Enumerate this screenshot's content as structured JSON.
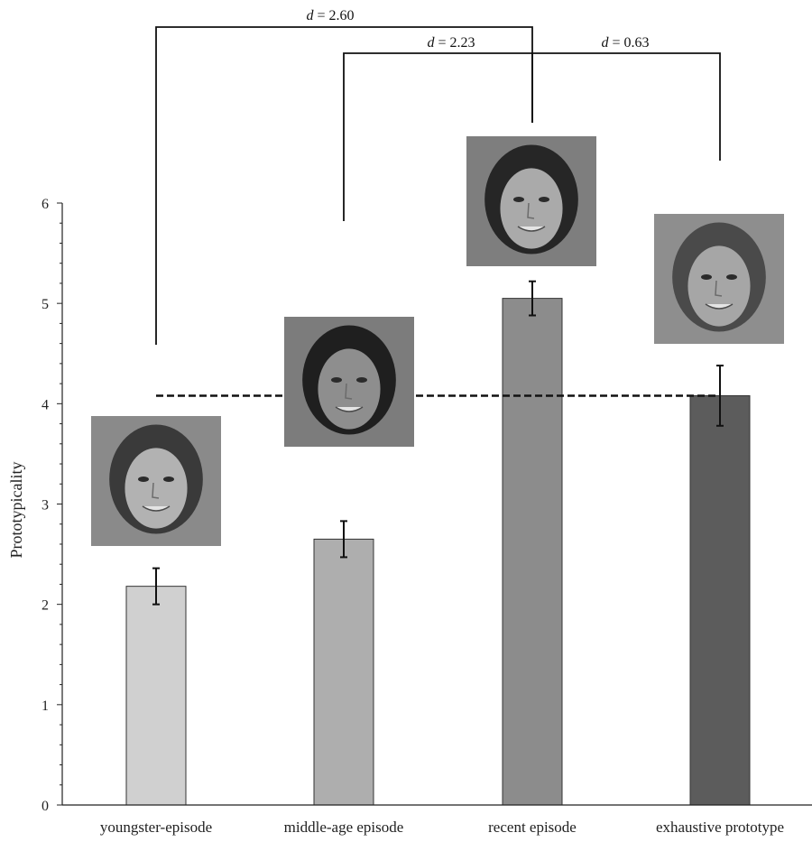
{
  "chart_data": {
    "type": "bar",
    "ylabel": "Prototypicality",
    "xlabel": "",
    "ylim": [
      0,
      6
    ],
    "yticks": [
      0,
      1,
      2,
      3,
      4,
      5,
      6
    ],
    "categories": [
      "youngster-episode",
      "middle-age episode",
      "recent episode",
      "exhaustive prototype"
    ],
    "values": [
      2.18,
      2.65,
      5.05,
      4.08
    ],
    "error": [
      0.18,
      0.18,
      0.17,
      0.3
    ],
    "bar_colors": [
      "#d0d0d0",
      "#aeaeae",
      "#8c8c8c",
      "#5c5c5c"
    ],
    "reference_line": {
      "value": 4.08,
      "style": "dashed"
    },
    "images": [
      "face-youngster",
      "face-middle-age",
      "face-recent",
      "face-exhaustive-prototype"
    ],
    "comparisons": [
      {
        "from": "youngster-episode",
        "to": "recent episode",
        "label_prefix": "d",
        "label_value": "= 2.60"
      },
      {
        "from": "middle-age episode",
        "to": "recent episode",
        "label_prefix": "d",
        "label_value": "= 2.23"
      },
      {
        "from": "recent episode",
        "to": "exhaustive prototype",
        "label_prefix": "d",
        "label_value": "= 0.63"
      }
    ]
  }
}
